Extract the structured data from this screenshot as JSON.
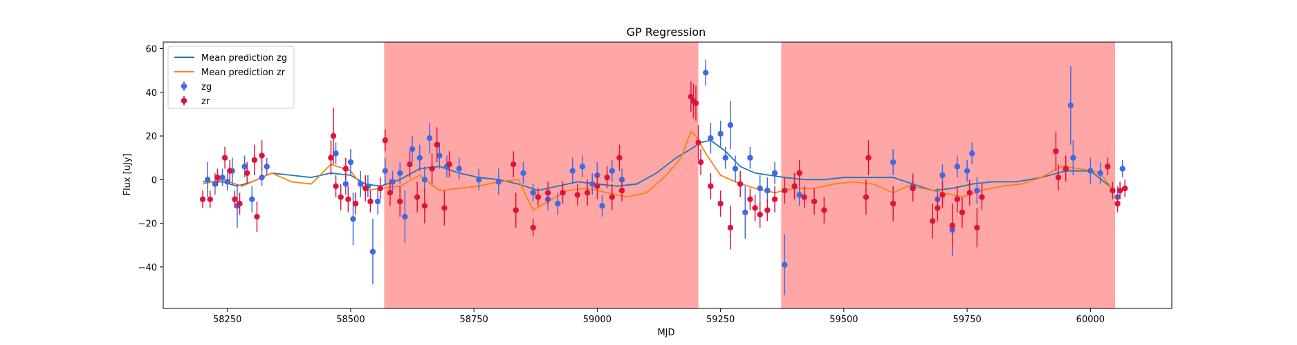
{
  "chart_data": {
    "type": "scatter",
    "title": "GP Regression",
    "xlabel": "MJD",
    "ylabel": "Flux [uJy]",
    "xlim": [
      58120,
      60165
    ],
    "ylim": [
      -59,
      63
    ],
    "xticks": [
      58250,
      58500,
      58750,
      59000,
      59250,
      59500,
      59750,
      60000
    ],
    "yticks": [
      -40,
      -20,
      0,
      20,
      40,
      60
    ],
    "grid": false,
    "legend_position": "top-left",
    "shaded_regions": [
      {
        "x0": 58568,
        "x1": 59205,
        "color": "#ff6b6b",
        "opacity": 0.6
      },
      {
        "x0": 59373,
        "x1": 60050,
        "color": "#ff6b6b",
        "opacity": 0.6
      }
    ],
    "lines": [
      {
        "name": "Mean prediction zg",
        "color": "#1f77b4",
        "x": [
          58200,
          58240,
          58270,
          58300,
          58340,
          58380,
          58420,
          58460,
          58500,
          58530,
          58560,
          58600,
          58640,
          58680,
          58720,
          58760,
          58800,
          58840,
          58880,
          58920,
          58960,
          59000,
          59040,
          59080,
          59120,
          59160,
          59190,
          59210,
          59230,
          59260,
          59290,
          59320,
          59350,
          59380,
          59420,
          59460,
          59500,
          59550,
          59600,
          59640,
          59680,
          59720,
          59760,
          59800,
          59850,
          59900,
          59950,
          60000,
          60050
        ],
        "y": [
          -1,
          -1,
          -3,
          -1,
          3,
          2,
          1,
          3,
          2,
          -2,
          -3,
          0,
          5,
          6,
          3,
          1,
          0,
          -2,
          -5,
          -3,
          -1,
          -2,
          -3,
          -2,
          3,
          10,
          14,
          17,
          18,
          13,
          6,
          3,
          2,
          1,
          0,
          0,
          1,
          1,
          1,
          -2,
          -5,
          -4,
          -2,
          -1,
          -1,
          1,
          4,
          4,
          -5
        ]
      },
      {
        "name": "Mean prediction zr",
        "color": "#ff7f0e",
        "x": [
          58200,
          58240,
          58280,
          58300,
          58340,
          58380,
          58420,
          58460,
          58500,
          58530,
          58560,
          58600,
          58640,
          58680,
          58720,
          58760,
          58800,
          58840,
          58870,
          58900,
          58940,
          58980,
          59020,
          59060,
          59100,
          59140,
          59170,
          59190,
          59200,
          59220,
          59250,
          59280,
          59320,
          59360,
          59400,
          59440,
          59480,
          59520,
          59560,
          59600,
          59630,
          59660,
          59700,
          59740,
          59780,
          59820,
          59860,
          59900,
          59940,
          59980,
          60020,
          60050
        ],
        "y": [
          -2,
          0,
          -3,
          -1,
          3,
          -1,
          -2,
          7,
          4,
          -5,
          -4,
          -3,
          2,
          -5,
          -4,
          -3,
          -1,
          0,
          -14,
          -10,
          -5,
          -4,
          -6,
          -8,
          -6,
          2,
          10,
          22,
          20,
          12,
          2,
          -1,
          -4,
          -6,
          -4,
          -4,
          -2,
          -1,
          -2,
          -6,
          -3,
          -4,
          -6,
          -8,
          -5,
          -3,
          -2,
          1,
          6,
          5,
          3,
          -6
        ]
      }
    ],
    "series": [
      {
        "name": "zg",
        "color": "#4169e1",
        "points": [
          [
            58210,
            0,
            8
          ],
          [
            58225,
            -2,
            5
          ],
          [
            58240,
            1,
            4
          ],
          [
            58250,
            -1,
            4
          ],
          [
            58260,
            4,
            6
          ],
          [
            58270,
            -12,
            10
          ],
          [
            58285,
            6,
            5
          ],
          [
            58300,
            -9,
            6
          ],
          [
            58320,
            1,
            4
          ],
          [
            58330,
            6,
            4
          ],
          [
            58470,
            12,
            5
          ],
          [
            58490,
            -2,
            5
          ],
          [
            58500,
            8,
            6
          ],
          [
            58505,
            -18,
            12
          ],
          [
            58520,
            -2,
            6
          ],
          [
            58535,
            -3,
            5
          ],
          [
            58545,
            -33,
            15
          ],
          [
            58555,
            -10,
            6
          ],
          [
            58570,
            4,
            6
          ],
          [
            58585,
            -1,
            5
          ],
          [
            58600,
            3,
            5
          ],
          [
            58610,
            -17,
            12
          ],
          [
            58625,
            14,
            6
          ],
          [
            58640,
            10,
            6
          ],
          [
            58650,
            0,
            6
          ],
          [
            58660,
            19,
            7
          ],
          [
            58680,
            11,
            6
          ],
          [
            58695,
            6,
            5
          ],
          [
            58720,
            5,
            5
          ],
          [
            58760,
            0,
            5
          ],
          [
            58800,
            -1,
            6
          ],
          [
            58850,
            3,
            5
          ],
          [
            58870,
            -6,
            4
          ],
          [
            58900,
            -9,
            5
          ],
          [
            58920,
            -11,
            5
          ],
          [
            58950,
            4,
            6
          ],
          [
            58970,
            6,
            5
          ],
          [
            58990,
            -2,
            5
          ],
          [
            59000,
            2,
            6
          ],
          [
            59010,
            -12,
            5
          ],
          [
            59030,
            4,
            5
          ],
          [
            59050,
            0,
            5
          ],
          [
            59220,
            49,
            6
          ],
          [
            59230,
            19,
            7
          ],
          [
            59250,
            21,
            6
          ],
          [
            59260,
            10,
            5
          ],
          [
            59270,
            25,
            11
          ],
          [
            59280,
            5,
            6
          ],
          [
            59300,
            -15,
            12
          ],
          [
            59310,
            10,
            5
          ],
          [
            59330,
            -4,
            6
          ],
          [
            59345,
            -5,
            6
          ],
          [
            59360,
            3,
            5
          ],
          [
            59380,
            -39,
            14
          ],
          [
            59400,
            -3,
            6
          ],
          [
            59410,
            -7,
            5
          ],
          [
            59600,
            8,
            6
          ],
          [
            59640,
            -3,
            6
          ],
          [
            59690,
            -9,
            5
          ],
          [
            59700,
            2,
            5
          ],
          [
            59720,
            -23,
            12
          ],
          [
            59730,
            6,
            5
          ],
          [
            59750,
            4,
            5
          ],
          [
            59760,
            12,
            5
          ],
          [
            59770,
            -5,
            6
          ],
          [
            59960,
            34,
            18
          ],
          [
            59965,
            10,
            8
          ],
          [
            60000,
            4,
            6
          ],
          [
            60020,
            3,
            5
          ],
          [
            60055,
            -8,
            5
          ],
          [
            60065,
            5,
            4
          ]
        ]
      },
      {
        "name": "zr",
        "color": "#dc143c",
        "points": [
          [
            58200,
            -9,
            4
          ],
          [
            58215,
            -9,
            4
          ],
          [
            58230,
            1,
            4
          ],
          [
            58245,
            10,
            5
          ],
          [
            58255,
            4,
            5
          ],
          [
            58265,
            -9,
            4
          ],
          [
            58275,
            -11,
            5
          ],
          [
            58290,
            3,
            5
          ],
          [
            58305,
            9,
            7
          ],
          [
            58310,
            -17,
            7
          ],
          [
            58320,
            11,
            7
          ],
          [
            58460,
            10,
            8
          ],
          [
            58465,
            20,
            13
          ],
          [
            58470,
            -3,
            5
          ],
          [
            58480,
            -8,
            6
          ],
          [
            58490,
            5,
            5
          ],
          [
            58495,
            -9,
            6
          ],
          [
            58510,
            -11,
            5
          ],
          [
            58530,
            -4,
            6
          ],
          [
            58540,
            -10,
            5
          ],
          [
            58560,
            -4,
            5
          ],
          [
            58570,
            18,
            5
          ],
          [
            58580,
            -6,
            6
          ],
          [
            58600,
            -10,
            7
          ],
          [
            58620,
            7,
            6
          ],
          [
            58635,
            -8,
            7
          ],
          [
            58650,
            -12,
            8
          ],
          [
            58665,
            5,
            7
          ],
          [
            58675,
            16,
            8
          ],
          [
            58690,
            -13,
            8
          ],
          [
            58700,
            7,
            6
          ],
          [
            58830,
            7,
            6
          ],
          [
            58835,
            -14,
            8
          ],
          [
            58870,
            -22,
            4
          ],
          [
            58880,
            -8,
            4
          ],
          [
            58900,
            -6,
            5
          ],
          [
            58930,
            -6,
            5
          ],
          [
            58960,
            -7,
            5
          ],
          [
            58980,
            -6,
            6
          ],
          [
            59000,
            -3,
            6
          ],
          [
            59020,
            1,
            5
          ],
          [
            59030,
            -8,
            6
          ],
          [
            59045,
            10,
            6
          ],
          [
            59050,
            -5,
            5
          ],
          [
            59190,
            38,
            7
          ],
          [
            59195,
            36,
            8
          ],
          [
            59200,
            35,
            8
          ],
          [
            59205,
            17,
            8
          ],
          [
            59210,
            8,
            6
          ],
          [
            59230,
            -3,
            6
          ],
          [
            59250,
            -11,
            6
          ],
          [
            59270,
            -22,
            10
          ],
          [
            59290,
            -2,
            6
          ],
          [
            59310,
            -9,
            5
          ],
          [
            59320,
            -13,
            6
          ],
          [
            59330,
            -16,
            6
          ],
          [
            59345,
            -14,
            5
          ],
          [
            59360,
            -9,
            6
          ],
          [
            59380,
            -5,
            6
          ],
          [
            59400,
            -3,
            6
          ],
          [
            59410,
            3,
            6
          ],
          [
            59420,
            -8,
            5
          ],
          [
            59440,
            -10,
            6
          ],
          [
            59460,
            -14,
            6
          ],
          [
            59545,
            -8,
            8
          ],
          [
            59550,
            10,
            8
          ],
          [
            59600,
            -11,
            8
          ],
          [
            59640,
            -4,
            6
          ],
          [
            59680,
            -19,
            8
          ],
          [
            59690,
            -13,
            6
          ],
          [
            59700,
            -7,
            6
          ],
          [
            59720,
            -21,
            10
          ],
          [
            59730,
            -9,
            6
          ],
          [
            59740,
            -15,
            7
          ],
          [
            59755,
            -6,
            6
          ],
          [
            59770,
            -22,
            9
          ],
          [
            59780,
            -8,
            6
          ],
          [
            59930,
            13,
            9
          ],
          [
            59935,
            1,
            6
          ],
          [
            59950,
            5,
            6
          ],
          [
            60035,
            6,
            4
          ],
          [
            60045,
            -5,
            4
          ],
          [
            60055,
            -11,
            4
          ],
          [
            60060,
            -5,
            4
          ],
          [
            60070,
            -4,
            4
          ]
        ]
      }
    ]
  }
}
